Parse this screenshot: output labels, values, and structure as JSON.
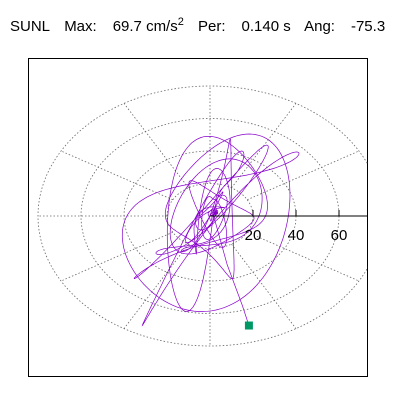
{
  "header": {
    "station": "SUNL",
    "max_label": "Max:",
    "max_value": "69.7 cm/s",
    "max_unit_exp": "2",
    "per_label": "Per:",
    "per_value": "0.140 s",
    "ang_label": "Ang:",
    "ang_value": "-75.3"
  },
  "chart_data": {
    "type": "polar",
    "title": "SUNL Max: 69.7 cm/s2 Per: 0.140 s Ang: -75.3",
    "radial_ticks": [
      "20",
      "40",
      "60"
    ],
    "radial_max": 80,
    "max_amplitude": 69.7,
    "max_angle_deg": -75.3,
    "period_s": 0.14,
    "grid": true,
    "series": [
      {
        "color": "#8800cc",
        "description": "particle motion trace"
      }
    ],
    "peak_marker": {
      "x": 18.1,
      "y": -67.4,
      "color": "#009966"
    }
  }
}
